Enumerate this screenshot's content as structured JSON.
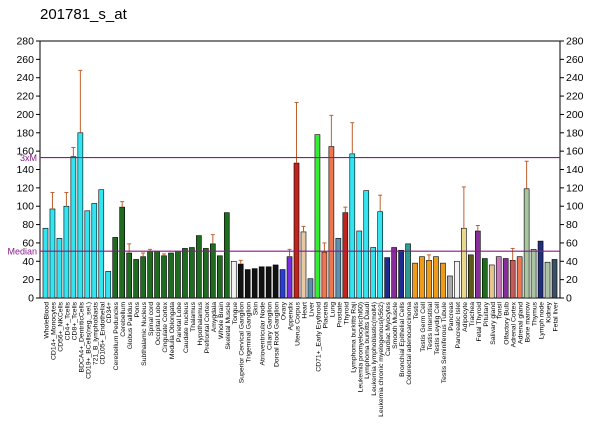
{
  "title": "201781_s_at",
  "colors": {
    "cyan": "#33e5f0",
    "dkgreen": "#1f6b1f",
    "white": "#f2f2f2",
    "black": "#111111",
    "blue": "#2a3dd4",
    "violet": "#7b2be0",
    "red": "#c0241e",
    "tan": "#e8c9a4",
    "steel": "#5d8fae",
    "lime": "#33ee33",
    "salmon": "#ee7752",
    "dkblue": "#1c2b8f",
    "teal": "#2e9c8e",
    "orange": "#ef9b1a",
    "dkolive": "#5d5a17",
    "ltbrown": "#e7c590",
    "gray": "#a9a9a9",
    "khaki": "#ead98a",
    "purple": "#8a2d9c",
    "pink": "#c978b9",
    "rose": "#c45a5a",
    "sage": "#a8c4a0",
    "navy": "#1f2f78",
    "slate": "#3c5064",
    "errorbar": "#c0602c",
    "refline": "#8a1a8a",
    "axis": "#000000"
  },
  "chart_data": {
    "type": "bar",
    "title": "201781_s_at",
    "ylim": [
      0,
      280
    ],
    "yticks": [
      0,
      20,
      40,
      60,
      80,
      100,
      120,
      140,
      160,
      180,
      200,
      220,
      240,
      260,
      280
    ],
    "grid": false,
    "reference_lines": [
      {
        "label": "3xM",
        "value": 153
      },
      {
        "label": "Median",
        "value": 51
      }
    ],
    "categories": [
      "WholeBlood",
      "CD14+_Monocytes",
      "CD56+_NKCells",
      "CD4+_Tcells",
      "CD8+_Tcells",
      "BDCA4+_DentriticCells",
      "CD19+_BCells(neg._sel.)",
      "721_B_lymphoblasts",
      "CD105+_Endothelial",
      "CD34+",
      "Cerebellum Peduncles",
      "Cerebellum",
      "Globus Pallidus",
      "Pons",
      "Subthalamic Nucleus",
      "Spinal cord",
      "Occipital Lobe",
      "Cingulate Cortex",
      "Medulla Oblongata",
      "Parietal Lobe",
      "Caudate nucleus",
      "Thalamus",
      "Hypothalamus",
      "Prefrontal Cortex",
      "Amygdala",
      "Whole Brain",
      "Skeletal Muscle",
      "Tongue",
      "Superior Cervical Ganglion",
      "Trigeminal Ganglion",
      "Skin",
      "Atrioventricular Node",
      "Ciliary Ganglion",
      "Dorsal Root Ganglion",
      "Ovary",
      "Appendix",
      "Uterus Corpus",
      "Heart",
      "Liver",
      "CD71+_Early Erythroid",
      "Placenta",
      "Lung",
      "Prostate",
      "Thyroid",
      "Lymphoma burkitts Raji",
      "Leukemia promyelocytic(hl60)",
      "Lymphoma burkitts Daudi",
      "Leukemia lymphoblastic(molt4)",
      "Leukemia chronic myelogenous(k562)",
      "Cardiac Myocytes",
      "Smooth Muscle",
      "Bronchial Epithelial Cells",
      "Colorectal adenocarcinoma",
      "Testis",
      "Testis Germ Cell",
      "Testis Interstitial",
      "Testis Leydig Cell",
      "Testis Seminiferous Tubule",
      "Pancreas",
      "Pancreatic Islet",
      "Adipocyte",
      "Trachea",
      "Fetal Thyroid",
      "Pituitary",
      "Salivary gland",
      "Tonsil",
      "Olfactory Bulb",
      "Adrenal Cortex",
      "Adrenal gland",
      "Bone marrow",
      "Thymus",
      "Lymph node",
      "Kidney",
      "Fetal liver"
    ],
    "values": [
      76,
      97,
      65,
      100,
      154,
      180,
      95,
      103,
      118,
      29,
      66,
      99,
      49,
      42,
      45,
      51,
      51,
      46,
      49,
      51,
      54,
      55,
      68,
      54,
      59,
      46,
      93,
      40,
      37,
      31,
      32,
      34,
      34,
      36,
      31,
      45,
      147,
      72,
      21,
      178,
      50,
      165,
      65,
      93,
      157,
      73,
      117,
      55,
      94,
      44,
      55,
      52,
      59,
      38,
      45,
      41,
      45,
      38,
      24,
      40,
      76,
      47,
      73,
      43,
      36,
      45,
      43,
      41,
      45,
      119,
      53,
      62,
      39,
      42
    ],
    "errors": [
      0,
      18,
      0,
      15,
      10,
      68,
      0,
      0,
      0,
      0,
      0,
      6,
      10,
      0,
      4,
      2,
      0,
      2,
      0,
      0,
      0,
      0,
      0,
      0,
      10,
      0,
      0,
      0,
      4,
      0,
      0,
      0,
      0,
      0,
      0,
      8,
      66,
      6,
      0,
      0,
      10,
      34,
      0,
      6,
      34,
      0,
      0,
      0,
      18,
      0,
      0,
      0,
      0,
      0,
      0,
      6,
      0,
      0,
      0,
      0,
      45,
      0,
      6,
      0,
      0,
      0,
      0,
      13,
      0,
      30,
      0,
      0,
      0,
      0
    ],
    "bar_colors": [
      "cyan",
      "cyan",
      "cyan",
      "cyan",
      "cyan",
      "cyan",
      "cyan",
      "cyan",
      "cyan",
      "cyan",
      "dkgreen",
      "dkgreen",
      "dkgreen",
      "dkgreen",
      "dkgreen",
      "dkgreen",
      "dkgreen",
      "dkgreen",
      "dkgreen",
      "dkgreen",
      "dkgreen",
      "dkgreen",
      "dkgreen",
      "dkgreen",
      "dkgreen",
      "dkgreen",
      "dkgreen",
      "white",
      "black",
      "black",
      "black",
      "black",
      "black",
      "black",
      "blue",
      "violet",
      "red",
      "tan",
      "steel",
      "lime",
      "salmon",
      "salmon",
      "steel",
      "red",
      "cyan",
      "cyan",
      "cyan",
      "cyan",
      "cyan",
      "dkblue",
      "purple",
      "dkblue",
      "teal",
      "orange",
      "orange",
      "orange",
      "orange",
      "orange",
      "gray",
      "white",
      "khaki",
      "dkolive",
      "purple",
      "dkgreen",
      "ltbrown",
      "pink",
      "purple",
      "rose",
      "salmon",
      "sage",
      "sage",
      "navy",
      "sage",
      "slate"
    ]
  }
}
